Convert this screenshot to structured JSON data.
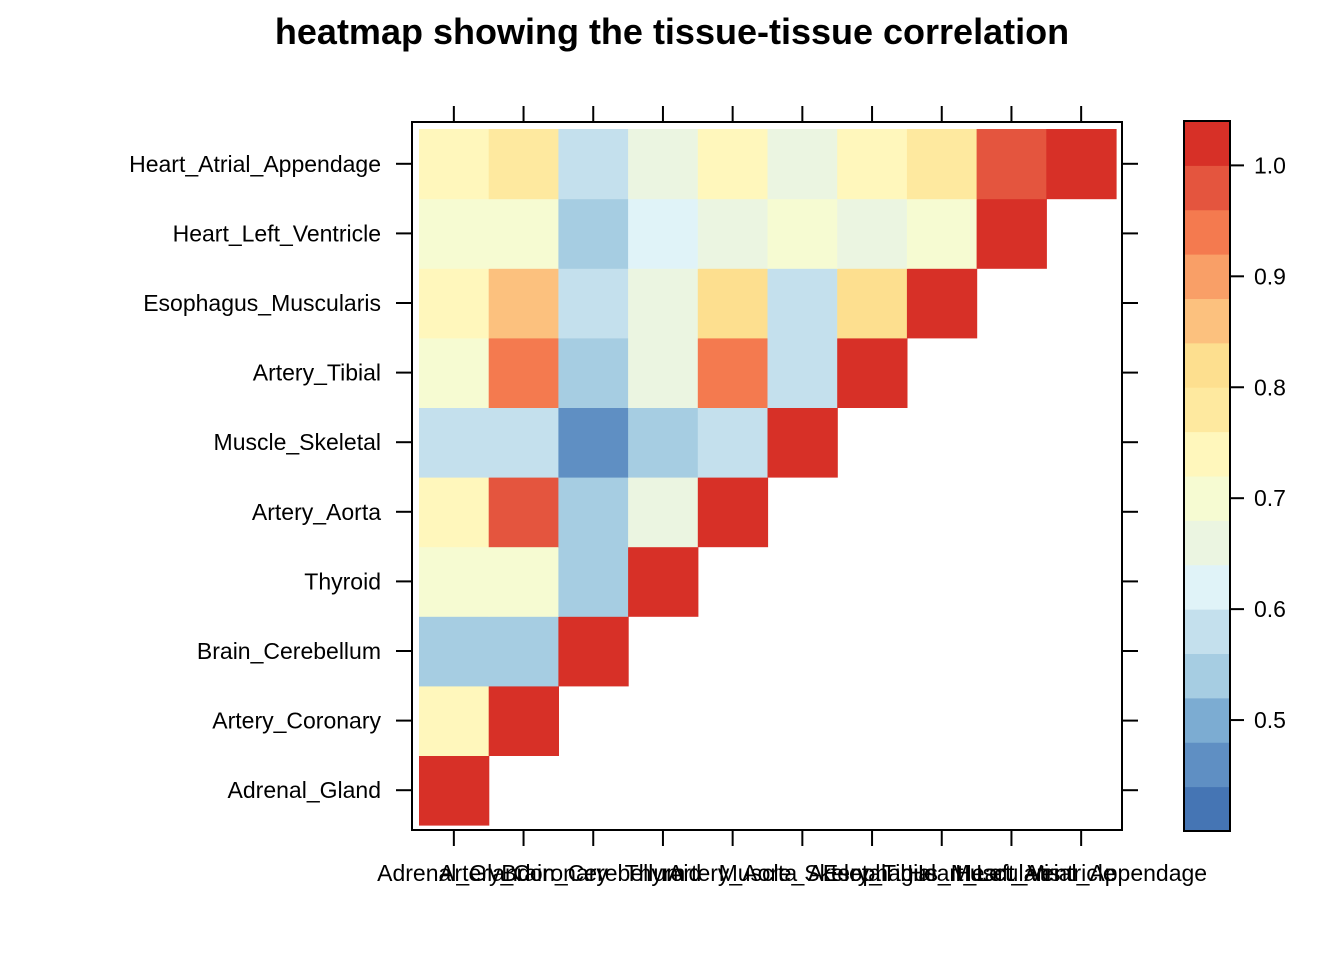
{
  "chart_data": {
    "type": "heatmap",
    "title": "heatmap showing the tissue-tissue correlation",
    "xlabel": "",
    "ylabel": "",
    "tissues": [
      "Adrenal_Gland",
      "Artery_Coronary",
      "Brain_Cerebellum",
      "Thyroid",
      "Artery_Aorta",
      "Muscle_Skeletal",
      "Artery_Tibial",
      "Esophagus_Muscularis",
      "Heart_Left_Ventricle",
      "Heart_Atrial_Appendage"
    ],
    "x_tick_labels": [
      "Adrenal_Gland",
      "Artery_Coronary",
      "Brain_Cerebellum",
      "Thyroid",
      "Artery_Aorta",
      "Muscle_Skeletal",
      "Artery_Tibial",
      "Esophagus_Muscularis",
      "Heart_Left_Ventricle",
      "Heart_Atrial_Appendage"
    ],
    "y_tick_labels": [
      "Adrenal_Gland",
      "Artery_Coronary",
      "Brain_Cerebellum",
      "Thyroid",
      "Artery_Aorta",
      "Muscle_Skeletal",
      "Artery_Tibial",
      "Esophagus_Muscularis",
      "Heart_Left_Ventricle",
      "Heart_Atrial_Appendage"
    ],
    "values": [
      [
        1.0,
        null,
        null,
        null,
        null,
        null,
        null,
        null,
        null,
        null
      ],
      [
        0.75,
        1.0,
        null,
        null,
        null,
        null,
        null,
        null,
        null,
        null
      ],
      [
        0.55,
        0.55,
        1.0,
        null,
        null,
        null,
        null,
        null,
        null,
        null
      ],
      [
        0.7,
        0.7,
        0.55,
        1.0,
        null,
        null,
        null,
        null,
        null,
        null
      ],
      [
        0.73,
        0.97,
        0.55,
        0.67,
        1.0,
        null,
        null,
        null,
        null,
        null
      ],
      [
        0.6,
        0.6,
        0.45,
        0.52,
        0.56,
        1.0,
        null,
        null,
        null,
        null
      ],
      [
        0.7,
        0.94,
        0.52,
        0.67,
        0.94,
        0.6,
        1.0,
        null,
        null,
        null
      ],
      [
        0.75,
        0.87,
        0.56,
        0.67,
        0.8,
        0.6,
        0.8,
        1.0,
        null,
        null
      ],
      [
        0.7,
        0.7,
        0.52,
        0.63,
        0.67,
        0.7,
        0.67,
        0.7,
        1.0,
        null
      ],
      [
        0.75,
        0.78,
        0.56,
        0.67,
        0.73,
        0.67,
        0.73,
        0.78,
        0.98,
        1.0
      ]
    ],
    "colorbar": {
      "range": [
        0.4,
        1.04
      ],
      "ticks": [
        "0.5",
        "0.6",
        "0.7",
        "0.8",
        "0.9",
        "1.0"
      ],
      "colors": [
        "#4575b4",
        "#5f8fc3",
        "#7cacd2",
        "#a6cde2",
        "#c4e0ed",
        "#e0f3f8",
        "#ebf5e1",
        "#f6fbd2",
        "#fff7bc",
        "#fee99f",
        "#fddf8f",
        "#fcc17e",
        "#f99f67",
        "#f47a4f",
        "#e4553e",
        "#d73027"
      ]
    }
  }
}
